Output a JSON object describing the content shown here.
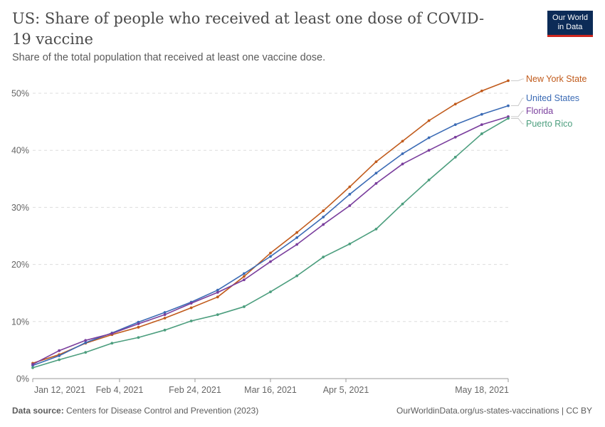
{
  "header": {
    "title": "US: Share of people who received at least one dose of COVID-19 vaccine",
    "subtitle": "Share of the total population that received at least one vaccine dose.",
    "logo_line1": "Our World",
    "logo_line2": "in Data"
  },
  "footer": {
    "source_label": "Data source:",
    "source_text": "Centers for Disease Control and Prevention (2023)",
    "url_text": "OurWorldinData.org/us-states-vaccinations | CC BY"
  },
  "chart_data": {
    "type": "line",
    "title": "US: Share of people who received at least one dose of COVID-19 vaccine",
    "xlabel": "",
    "ylabel": "",
    "x_range": [
      "2021-01-12",
      "2021-05-18"
    ],
    "ylim": [
      0,
      50
    ],
    "y_ticks": [
      0,
      10,
      20,
      30,
      40,
      50
    ],
    "y_tick_labels": [
      "0%",
      "10%",
      "20%",
      "30%",
      "40%",
      "50%"
    ],
    "x_ticks": [
      "2021-01-12",
      "2021-02-04",
      "2021-02-24",
      "2021-03-16",
      "2021-04-05",
      "2021-05-18"
    ],
    "x_tick_labels": [
      "Jan 12, 2021",
      "Feb 4, 2021",
      "Feb 24, 2021",
      "Mar 16, 2021",
      "Apr 5, 2021",
      "May 18, 2021"
    ],
    "grid": "horizontal dashed",
    "legend": "right (line-end labels)",
    "series": [
      {
        "name": "New York State",
        "color": "#c15b1c",
        "points": [
          [
            "2021-01-12",
            2.7
          ],
          [
            "2021-01-19",
            4.2
          ],
          [
            "2021-01-26",
            6.2
          ],
          [
            "2021-02-02",
            7.7
          ],
          [
            "2021-02-09",
            9.0
          ],
          [
            "2021-02-16",
            10.6
          ],
          [
            "2021-02-23",
            12.4
          ],
          [
            "2021-03-02",
            14.3
          ],
          [
            "2021-03-09",
            17.9
          ],
          [
            "2021-03-16",
            22.0
          ],
          [
            "2021-03-23",
            25.6
          ],
          [
            "2021-03-30",
            29.4
          ],
          [
            "2021-04-06",
            33.6
          ],
          [
            "2021-04-13",
            38.0
          ],
          [
            "2021-04-20",
            41.6
          ],
          [
            "2021-04-27",
            45.2
          ],
          [
            "2021-05-04",
            48.1
          ],
          [
            "2021-05-11",
            50.4
          ],
          [
            "2021-05-18",
            52.2
          ]
        ]
      },
      {
        "name": "United States",
        "color": "#3b6bb5",
        "points": [
          [
            "2021-01-12",
            2.3
          ],
          [
            "2021-01-19",
            4.0
          ],
          [
            "2021-01-26",
            6.3
          ],
          [
            "2021-02-02",
            8.0
          ],
          [
            "2021-02-09",
            9.9
          ],
          [
            "2021-02-16",
            11.6
          ],
          [
            "2021-02-23",
            13.4
          ],
          [
            "2021-03-02",
            15.5
          ],
          [
            "2021-03-09",
            18.4
          ],
          [
            "2021-03-16",
            21.4
          ],
          [
            "2021-03-23",
            24.7
          ],
          [
            "2021-03-30",
            28.3
          ],
          [
            "2021-04-06",
            32.3
          ],
          [
            "2021-04-13",
            36.0
          ],
          [
            "2021-04-20",
            39.4
          ],
          [
            "2021-04-27",
            42.2
          ],
          [
            "2021-05-04",
            44.5
          ],
          [
            "2021-05-11",
            46.3
          ],
          [
            "2021-05-18",
            47.8
          ]
        ]
      },
      {
        "name": "Florida",
        "color": "#7a3e9d",
        "points": [
          [
            "2021-01-12",
            2.5
          ],
          [
            "2021-01-19",
            4.9
          ],
          [
            "2021-01-26",
            6.7
          ],
          [
            "2021-02-02",
            7.9
          ],
          [
            "2021-02-09",
            9.6
          ],
          [
            "2021-02-16",
            11.2
          ],
          [
            "2021-02-23",
            13.2
          ],
          [
            "2021-03-02",
            15.1
          ],
          [
            "2021-03-09",
            17.3
          ],
          [
            "2021-03-16",
            20.5
          ],
          [
            "2021-03-23",
            23.5
          ],
          [
            "2021-03-30",
            27.0
          ],
          [
            "2021-04-06",
            30.3
          ],
          [
            "2021-04-13",
            34.2
          ],
          [
            "2021-04-20",
            37.6
          ],
          [
            "2021-04-27",
            40.0
          ],
          [
            "2021-05-04",
            42.3
          ],
          [
            "2021-05-11",
            44.5
          ],
          [
            "2021-05-18",
            45.9
          ]
        ]
      },
      {
        "name": "Puerto Rico",
        "color": "#4c9e7e",
        "points": [
          [
            "2021-01-12",
            1.9
          ],
          [
            "2021-01-19",
            3.3
          ],
          [
            "2021-01-26",
            4.6
          ],
          [
            "2021-02-02",
            6.2
          ],
          [
            "2021-02-09",
            7.2
          ],
          [
            "2021-02-16",
            8.5
          ],
          [
            "2021-02-23",
            10.1
          ],
          [
            "2021-03-02",
            11.2
          ],
          [
            "2021-03-09",
            12.6
          ],
          [
            "2021-03-16",
            15.2
          ],
          [
            "2021-03-23",
            18.0
          ],
          [
            "2021-03-30",
            21.3
          ],
          [
            "2021-04-06",
            23.6
          ],
          [
            "2021-04-13",
            26.2
          ],
          [
            "2021-04-20",
            30.6
          ],
          [
            "2021-04-27",
            34.8
          ],
          [
            "2021-05-04",
            38.8
          ],
          [
            "2021-05-11",
            42.9
          ],
          [
            "2021-05-18",
            45.6
          ]
        ]
      }
    ]
  }
}
